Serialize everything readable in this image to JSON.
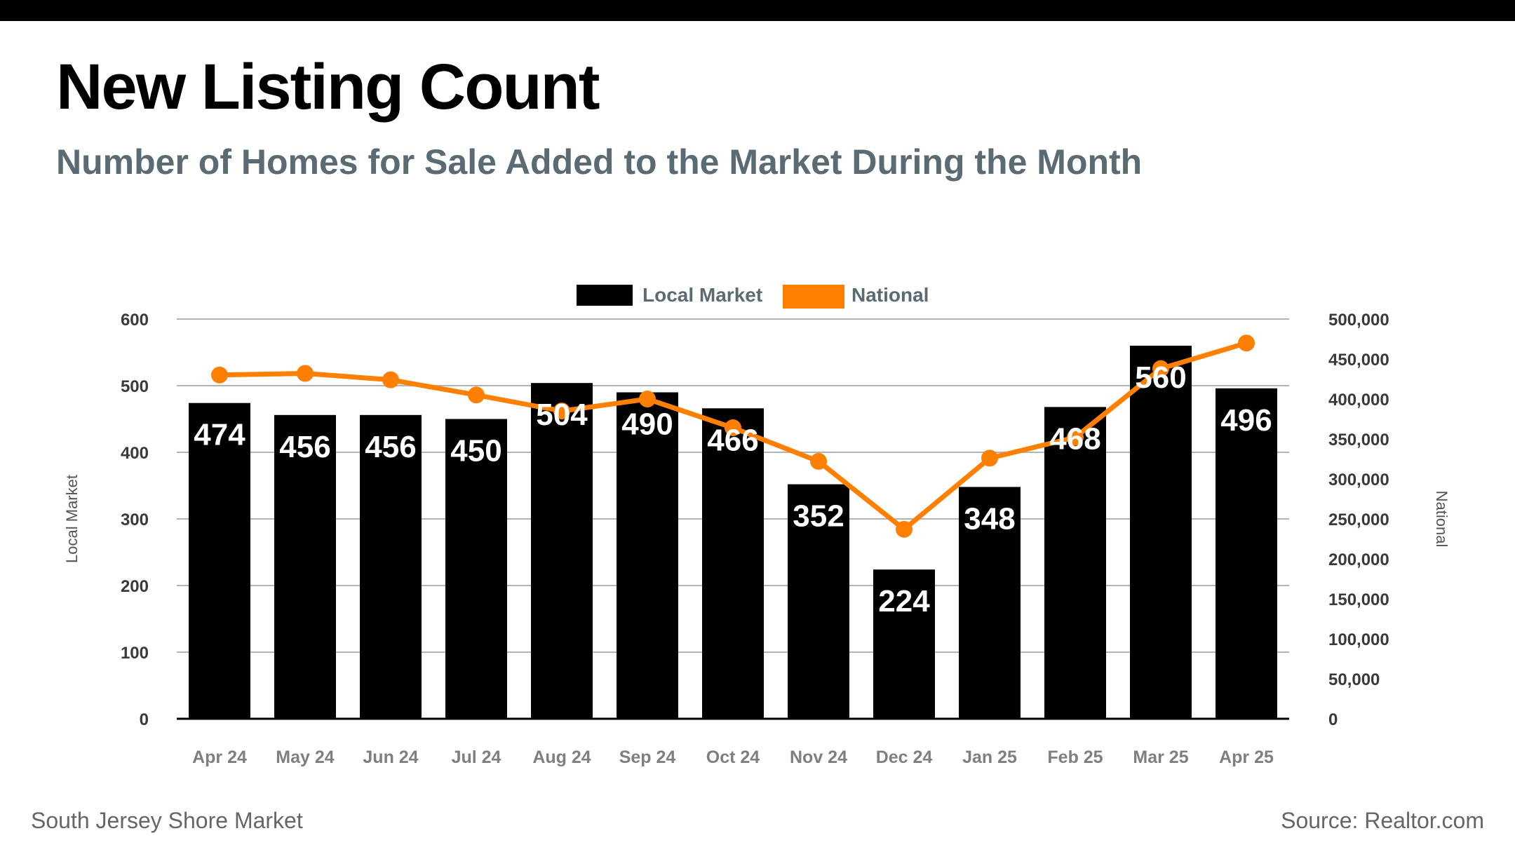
{
  "header": {
    "title": "New Listing Count",
    "subtitle": "Number of Homes for Sale Added to the Market During the Month"
  },
  "footer": {
    "left": "South Jersey Shore Market",
    "right": "Source: Realtor.com"
  },
  "colors": {
    "bar": "#000000",
    "line": "#ff8000",
    "grid": "#b3b3b3",
    "axis_text": "#3a3a3a",
    "legend_text": "#5b6b73",
    "tick_text": "#7f7f7f"
  },
  "chart_data": {
    "type": "bar+line",
    "title": "New Listing Count",
    "categories": [
      "Apr 24",
      "May 24",
      "Jun 24",
      "Jul 24",
      "Aug 24",
      "Sep 24",
      "Oct 24",
      "Nov 24",
      "Dec 24",
      "Jan 25",
      "Feb 25",
      "Mar 25",
      "Apr 25"
    ],
    "series": [
      {
        "name": "Local Market",
        "type": "bar",
        "axis": "left",
        "values": [
          474,
          456,
          456,
          450,
          504,
          490,
          466,
          352,
          224,
          348,
          468,
          560,
          496
        ],
        "labels": [
          "474",
          "456",
          "456",
          "450",
          "504",
          "490",
          "466",
          "352",
          "224",
          "348",
          "468",
          "560",
          "496"
        ]
      },
      {
        "name": "National",
        "type": "line",
        "axis": "right",
        "values": [
          430000,
          432000,
          424000,
          405000,
          385000,
          400000,
          364000,
          322000,
          237000,
          326000,
          352000,
          438000,
          470000
        ]
      }
    ],
    "left_axis": {
      "label": "Local Market",
      "range": [
        0,
        600
      ],
      "ticks": [
        0,
        100,
        200,
        300,
        400,
        500,
        600
      ],
      "tick_labels": [
        "0",
        "100",
        "200",
        "300",
        "400",
        "500",
        "600"
      ]
    },
    "right_axis": {
      "label": "National",
      "range": [
        0,
        500000
      ],
      "ticks": [
        0,
        50000,
        100000,
        150000,
        200000,
        250000,
        300000,
        350000,
        400000,
        450000,
        500000
      ],
      "tick_labels": [
        "0",
        "50,000",
        "100,000",
        "150,000",
        "200,000",
        "250,000",
        "300,000",
        "350,000",
        "400,000",
        "450,000",
        "500,000"
      ]
    },
    "legend": {
      "position": "top-center",
      "items": [
        "Local Market",
        "National"
      ]
    },
    "grid": true
  }
}
